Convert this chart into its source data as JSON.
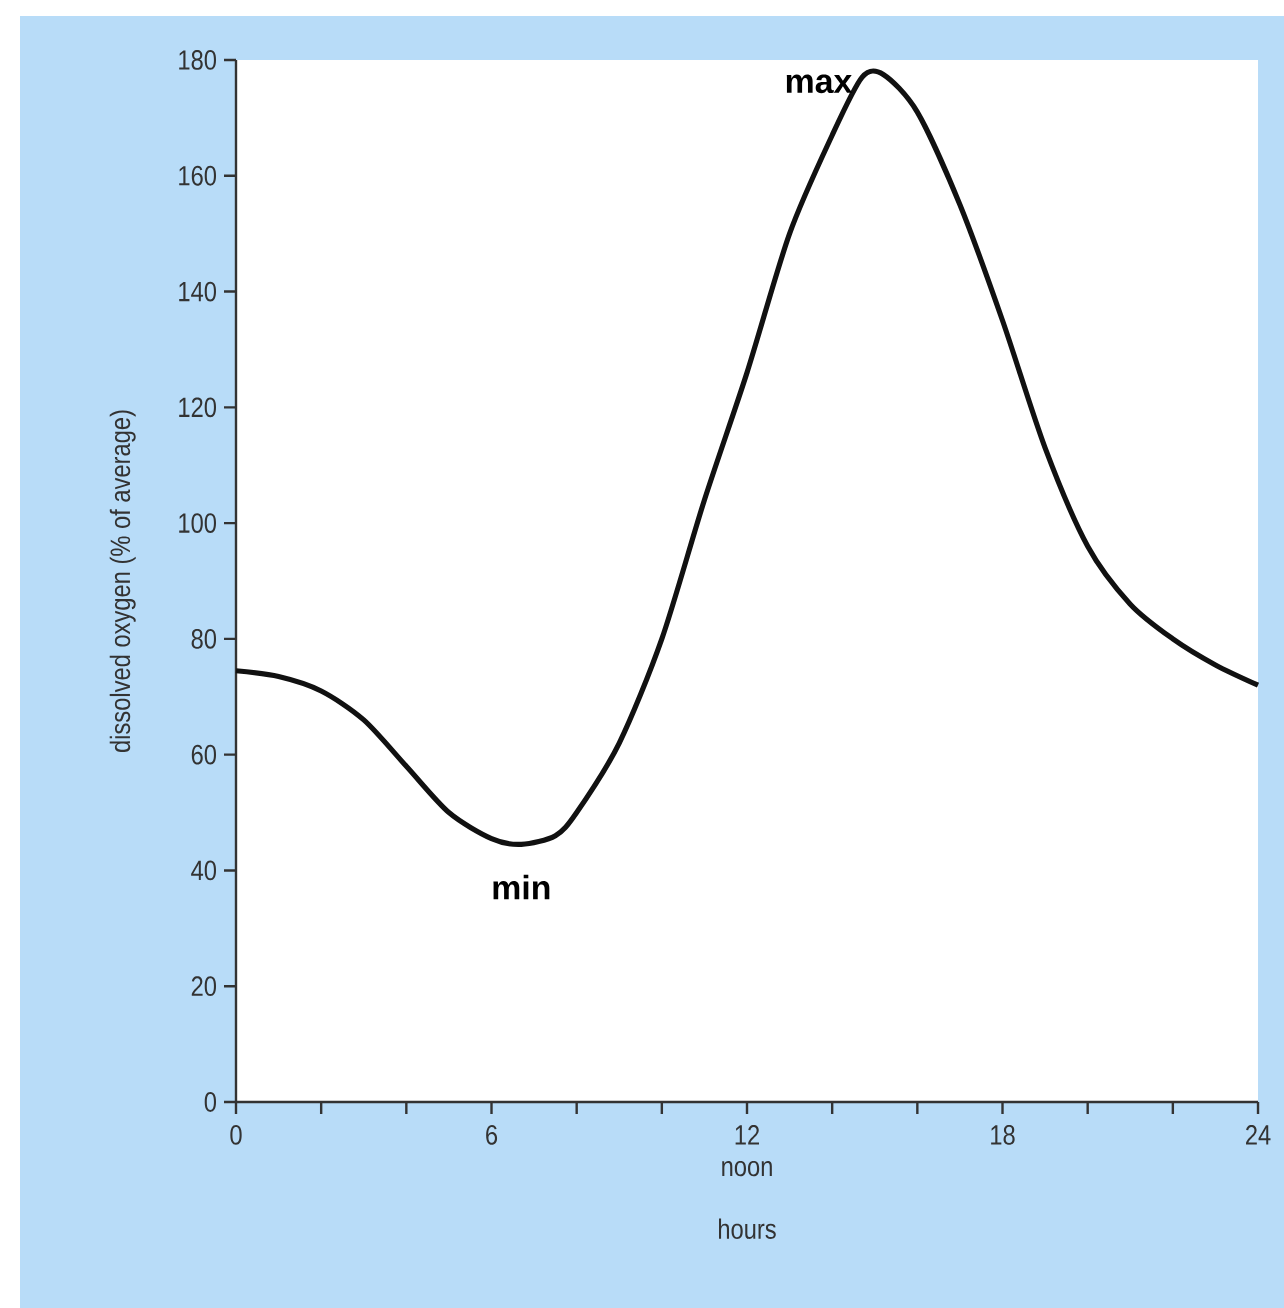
{
  "chart_data": {
    "type": "line",
    "xlabel": "hours",
    "ylabel": "dissolved oxygen (% of average)",
    "x": [
      0,
      1,
      2,
      3,
      4,
      5,
      6,
      6.7,
      7.5,
      8,
      9,
      10,
      11,
      12,
      13,
      14,
      14.7,
      15.2,
      16,
      17,
      18,
      19,
      20,
      21,
      22,
      23,
      24
    ],
    "series": [
      {
        "color": "#111111",
        "values": [
          74.5,
          73.5,
          71,
          66,
          58,
          50,
          45.5,
          44.5,
          46,
          50,
          62,
          80,
          104,
          126,
          150,
          167,
          177,
          177.5,
          171,
          155,
          135,
          113,
          96,
          86,
          80,
          75.5,
          72
        ]
      }
    ],
    "xlim": [
      0,
      24
    ],
    "ylim": [
      0,
      180
    ],
    "xticks": [
      0,
      {
        "value": 2,
        "label": null
      },
      {
        "value": 4,
        "label": null
      },
      6,
      {
        "value": 8,
        "label": null
      },
      {
        "value": 10,
        "label": null
      },
      12,
      {
        "value": 14,
        "label": null
      },
      {
        "value": 16,
        "label": null
      },
      18,
      {
        "value": 20,
        "label": null
      },
      {
        "value": 22,
        "label": null
      },
      24
    ],
    "yticks": [
      0,
      20,
      40,
      60,
      80,
      100,
      120,
      140,
      160,
      180
    ],
    "annotations": [
      {
        "text": "max",
        "x": 15,
        "y": 178
      },
      {
        "text": "min",
        "x": 6.7,
        "y": 44.5
      },
      "noon"
    ],
    "grid": false,
    "marker": "none",
    "line_style": "solid"
  }
}
